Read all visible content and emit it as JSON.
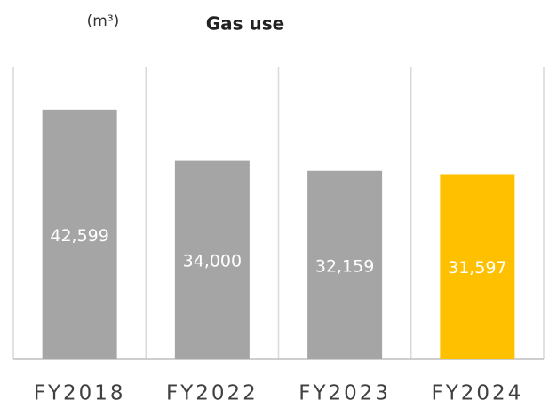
{
  "chart_data": {
    "type": "bar",
    "title": "Gas use",
    "unit_label": "(m³)",
    "categories": [
      "FY2018",
      "FY2022",
      "FY2023",
      "FY2024"
    ],
    "values": [
      42599,
      34000,
      32159,
      31597
    ],
    "value_labels": [
      "42,599",
      "34,000",
      "32,159",
      "31,597"
    ],
    "colors": [
      "#a5a5a5",
      "#a5a5a5",
      "#a5a5a5",
      "#ffc000"
    ],
    "ylim": [
      0,
      50000
    ]
  }
}
